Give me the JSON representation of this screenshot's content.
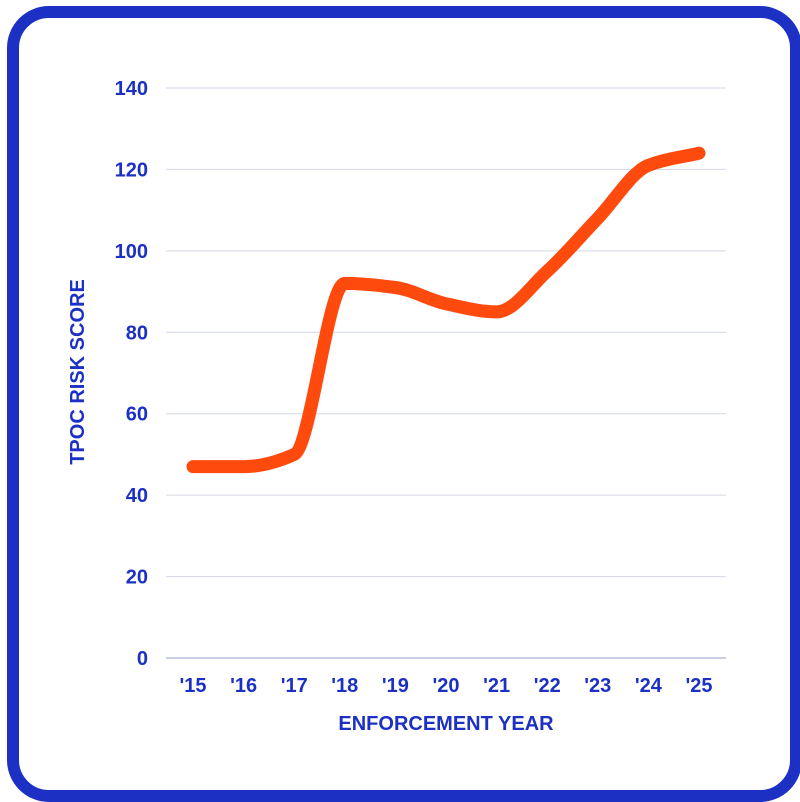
{
  "chart_data": {
    "type": "line",
    "title": "",
    "xlabel": "ENFORCEMENT YEAR",
    "ylabel": "TPOC RISK SCORE",
    "categories": [
      "'15",
      "'16",
      "'17",
      "'18",
      "'19",
      "'20",
      "'21",
      "'22",
      "'23",
      "'24",
      "'25"
    ],
    "y_ticks": [
      0,
      20,
      40,
      60,
      80,
      100,
      120,
      140
    ],
    "ylim": [
      0,
      140
    ],
    "grid": true,
    "series": [
      {
        "color": "#ff4a0e",
        "values": [
          47,
          47,
          50,
          92,
          91,
          87,
          85,
          95,
          108,
          121,
          124
        ]
      }
    ],
    "colors": {
      "frame": "#1c31c4",
      "text": "#1c31c4",
      "grid": "#d4d7e8",
      "line": "#ff4a0e"
    }
  }
}
